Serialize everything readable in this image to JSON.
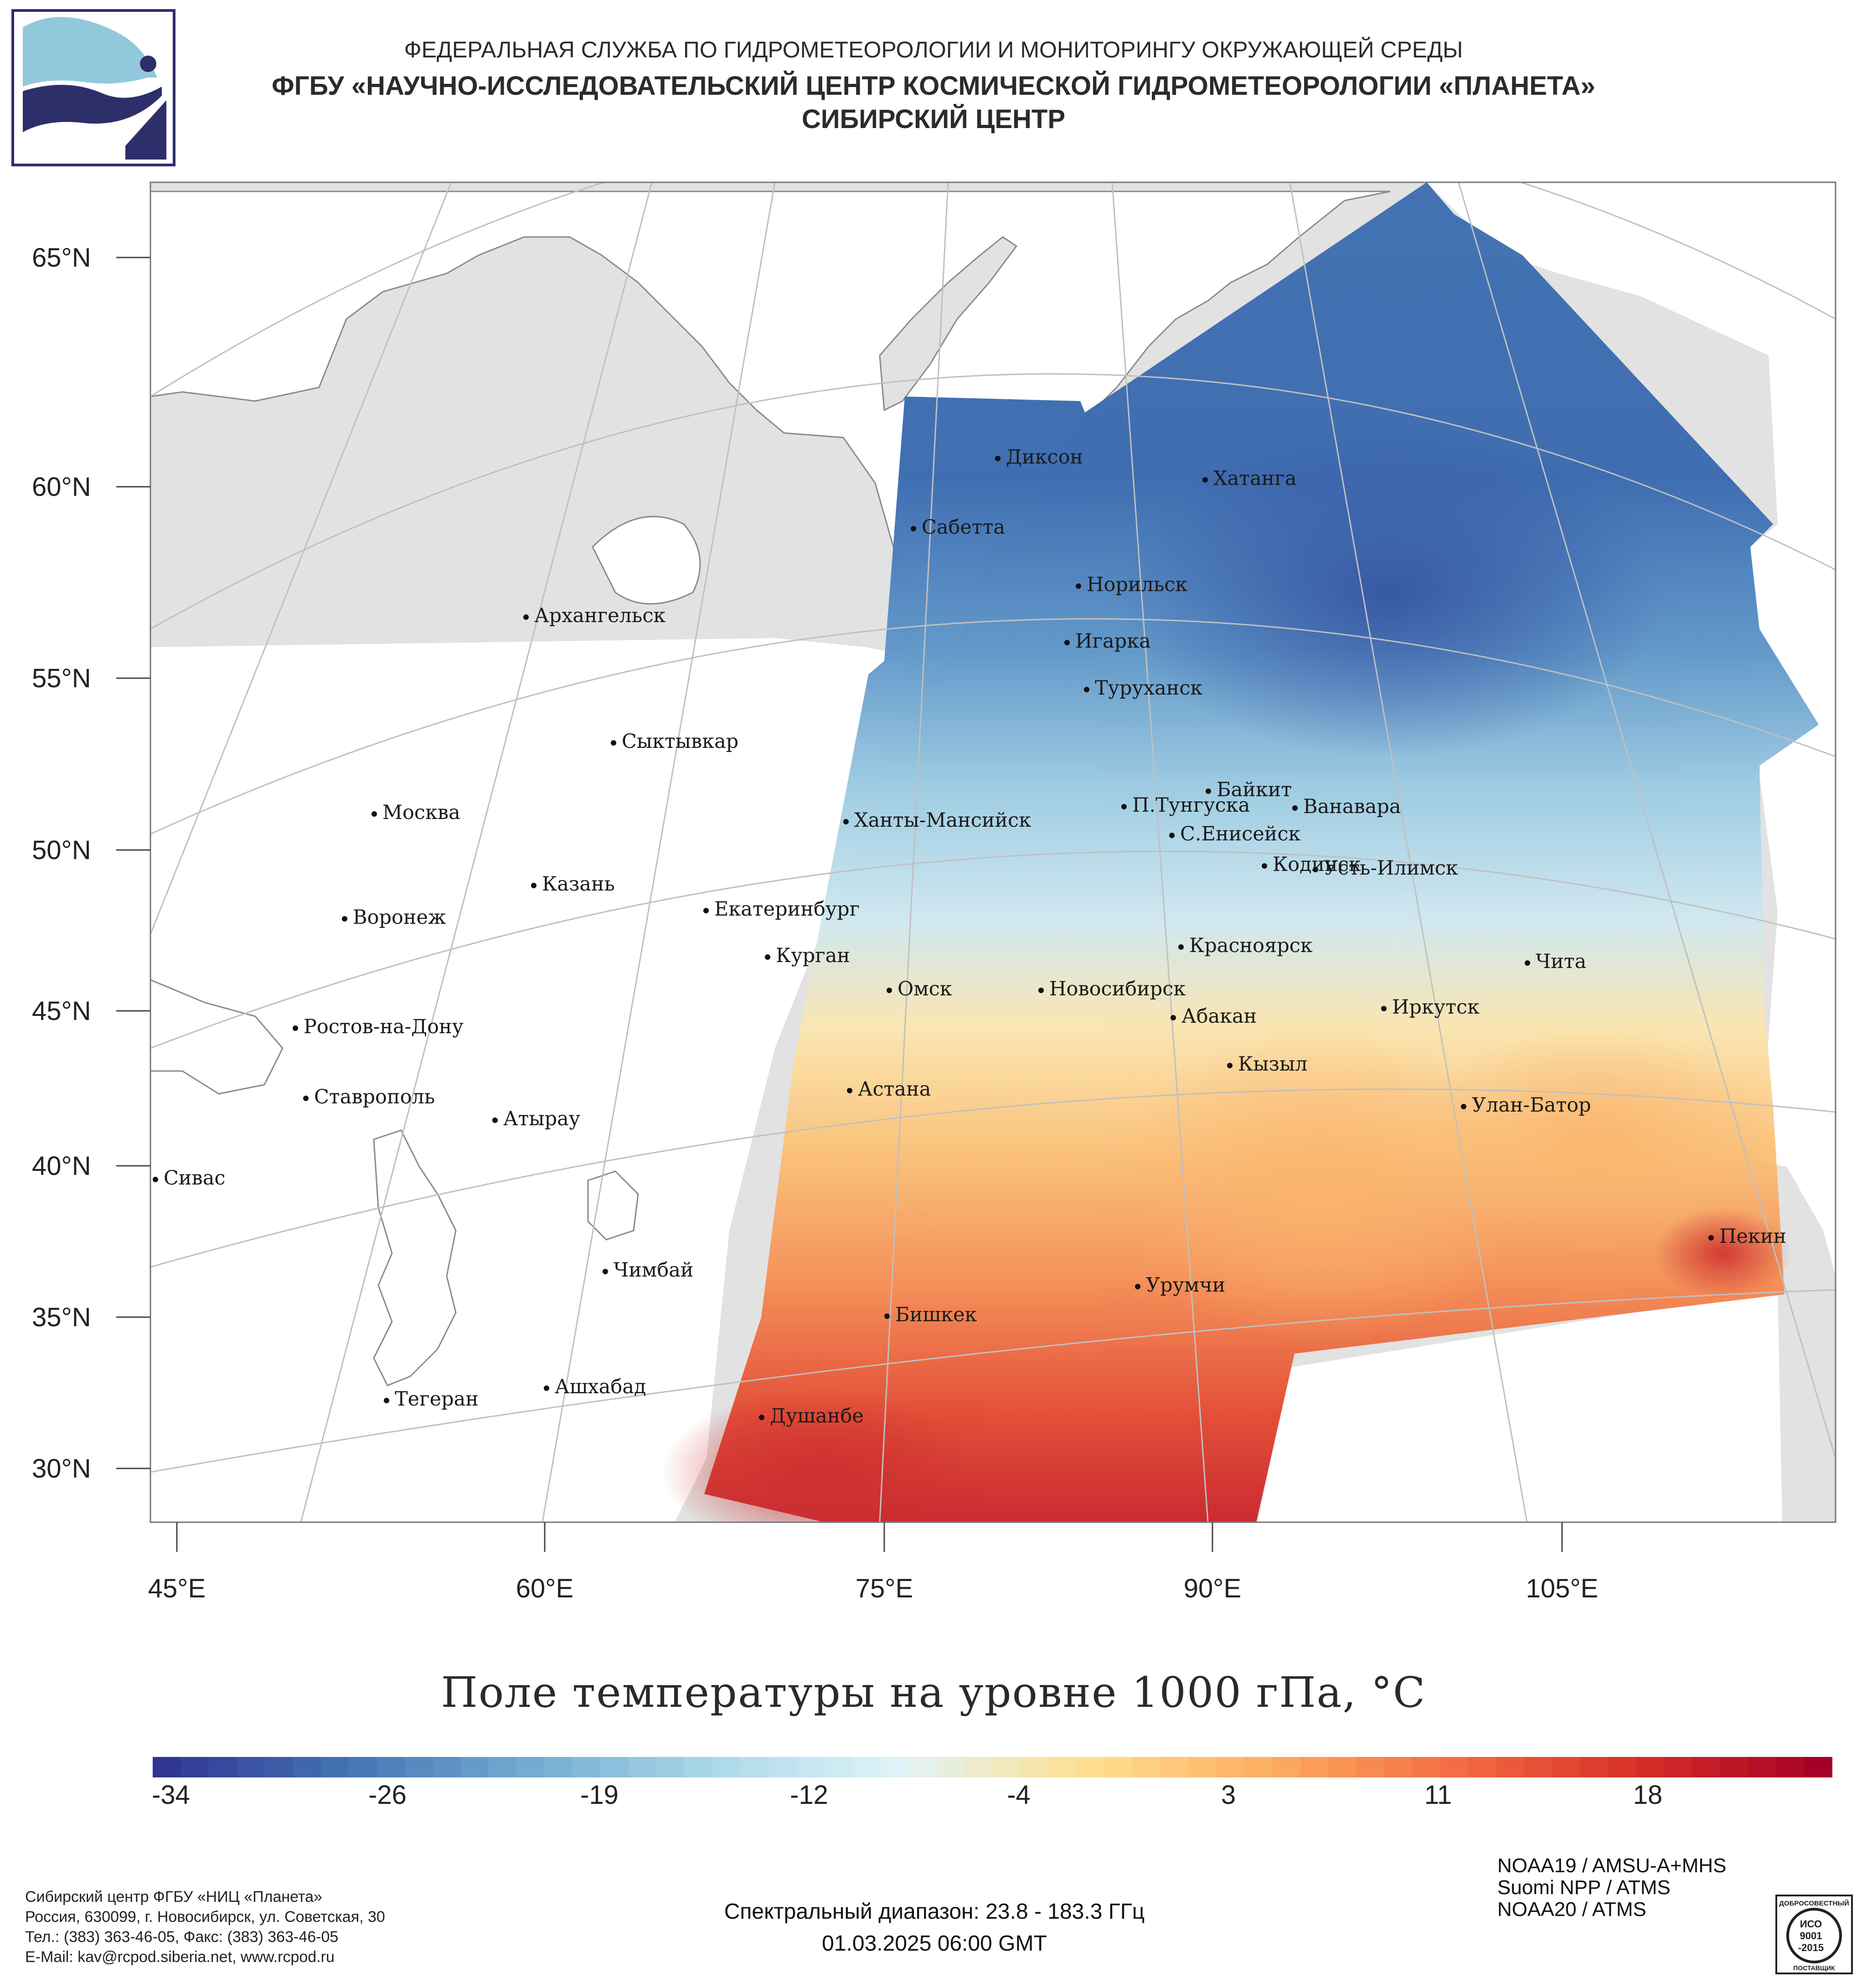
{
  "header": {
    "line1": "ФЕДЕРАЛЬНАЯ СЛУЖБА ПО ГИДРОМЕТЕОРОЛОГИИ И МОНИТОРИНГУ ОКРУЖАЮЩЕЙ СРЕДЫ",
    "line2": "ФГБУ «НАУЧНО-ИССЛЕДОВАТЕЛЬСКИЙ ЦЕНТР КОСМИЧЕСКОЙ ГИДРОМЕТЕОРОЛОГИИ «ПЛАНЕТА»",
    "line3": "СИБИРСКИЙ ЦЕНТР"
  },
  "logo_icon": "planeta-logo-icon",
  "map": {
    "lat_labels": [
      "65°N",
      "60°N",
      "55°N",
      "50°N",
      "45°N",
      "40°N",
      "35°N",
      "30°N"
    ],
    "lon_labels": [
      "45°E",
      "60°E",
      "75°E",
      "90°E",
      "105°E"
    ],
    "cities": [
      {
        "name": "Диксон"
      },
      {
        "name": "Хатанга"
      },
      {
        "name": "Сабетта"
      },
      {
        "name": "Норильск"
      },
      {
        "name": "Архангельск"
      },
      {
        "name": "Игарка"
      },
      {
        "name": "Туруханск"
      },
      {
        "name": "Сыктывкар"
      },
      {
        "name": "Байкит"
      },
      {
        "name": "Москва"
      },
      {
        "name": "П.Тунгуска"
      },
      {
        "name": "Ванавара"
      },
      {
        "name": "Ханты-Мансийск"
      },
      {
        "name": "С.Енисейск"
      },
      {
        "name": "Кодинск"
      },
      {
        "name": "Усть-Илимск"
      },
      {
        "name": "Казань"
      },
      {
        "name": "Екатеринбург"
      },
      {
        "name": "Воронеж"
      },
      {
        "name": "Красноярск"
      },
      {
        "name": "Курган"
      },
      {
        "name": "Чита"
      },
      {
        "name": "Омск"
      },
      {
        "name": "Новосибирск"
      },
      {
        "name": "Иркутск"
      },
      {
        "name": "Абакан"
      },
      {
        "name": "Ростов-на-Дону"
      },
      {
        "name": "Кызыл"
      },
      {
        "name": "Ставрополь"
      },
      {
        "name": "Астана"
      },
      {
        "name": "Улан-Батор"
      },
      {
        "name": "Атырау"
      },
      {
        "name": "Сивас"
      },
      {
        "name": "Пекин"
      },
      {
        "name": "Чимбай"
      },
      {
        "name": "Урумчи"
      },
      {
        "name": "Бишкек"
      },
      {
        "name": "Ашхабад"
      },
      {
        "name": "Тегеран"
      },
      {
        "name": "Душанбе"
      }
    ],
    "colors": {
      "land": "#e2e2e2",
      "water": "#ffffff",
      "coast": "#7a7a7a",
      "grid": "#c8c8c8"
    }
  },
  "title": "Поле температуры на уровне 1000 гПа, °С",
  "colorbar": {
    "ticks": [
      "-34",
      "-26",
      "-19",
      "-12",
      "-4",
      "3",
      "11",
      "18"
    ],
    "colors": [
      "#313695",
      "#4575b4",
      "#74add1",
      "#abd9e9",
      "#e0f3f8",
      "#fee090",
      "#fdae61",
      "#f46d43",
      "#d73027",
      "#a50026"
    ]
  },
  "footer": {
    "org_lines": [
      "Сибирский центр ФГБУ «НИЦ «Планета»",
      "Россия, 630099, г. Новосибирск, ул. Советская, 30",
      "Тел.: (383) 363-46-05, Факс: (383) 363-46-05",
      "E-Mail: kav@rcpod.siberia.net, www.rcpod.ru"
    ],
    "spectral": "Спектральный диапазон: 23.8 - 183.3 ГГц",
    "datetime": "01.03.2025 06:00 GMT",
    "satellites": [
      "NOAA19 / AMSU-A+MHS",
      "Suomi NPP / ATMS",
      "NOAA20 / ATMS"
    ],
    "iso_badge": {
      "top": "ДОБРОСОВЕСТНЫЙ",
      "mid1": "ИСО",
      "mid2": "9001",
      "mid3": "-2015",
      "bottom": "ПОСТАВЩИК"
    }
  }
}
